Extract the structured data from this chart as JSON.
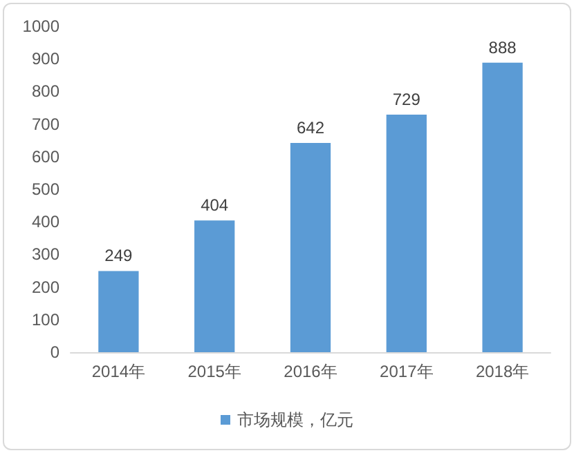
{
  "chart_data": {
    "type": "bar",
    "categories": [
      "2014年",
      "2015年",
      "2016年",
      "2017年",
      "2018年"
    ],
    "series": [
      {
        "name": "市场规模，亿元",
        "color": "#5b9bd5",
        "values": [
          249,
          404,
          642,
          729,
          888
        ]
      }
    ],
    "ylim": [
      0,
      1000
    ],
    "yticks": [
      0,
      100,
      200,
      300,
      400,
      500,
      600,
      700,
      800,
      900,
      1000
    ],
    "grid": false,
    "legend": "bottom",
    "data_labels": true
  }
}
